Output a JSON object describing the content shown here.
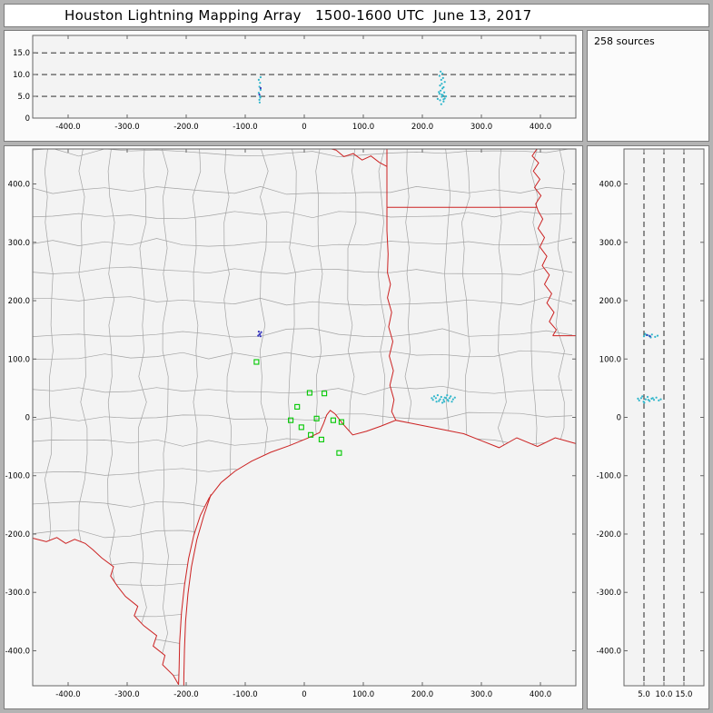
{
  "window": {
    "title": "Houston Lightning Mapping Array   1500-1600 UTC  June 13, 2017"
  },
  "status": {
    "sources_label": "258 sources"
  },
  "colors": {
    "frame": "#b3b3b3",
    "title_bg": "#ffffff",
    "panel_bg": "#fbfbfb",
    "plot_bg": "#f3f3f3",
    "axis": "#666666",
    "county": "#a3a3a3",
    "state_border": "#cc2222",
    "station": "#00c800",
    "source_cyan": "#2fb6cb",
    "source_navy": "#3434bb"
  },
  "chart_data": [
    {
      "id": "altitude_vs_ew",
      "type": "scatter",
      "description": "altitude (km) vs east-west distance (km)",
      "x_range": [
        -460,
        460
      ],
      "y_range": [
        0,
        19
      ],
      "x_ticks": [
        {
          "v": -400,
          "label": "-400.0"
        },
        {
          "v": -300,
          "label": "-300.0"
        },
        {
          "v": -200,
          "label": "-200.0"
        },
        {
          "v": -100,
          "label": "-100.0"
        },
        {
          "v": 0,
          "label": "0"
        },
        {
          "v": 100,
          "label": "100.0"
        },
        {
          "v": 200,
          "label": "200.0"
        },
        {
          "v": 300,
          "label": "300.0"
        },
        {
          "v": 400,
          "label": "400.0"
        }
      ],
      "y_ticks": [
        {
          "v": 15,
          "label": "15.0"
        },
        {
          "v": 10,
          "label": "10.0"
        },
        {
          "v": 5,
          "label": "5.0"
        },
        {
          "v": 0,
          "label": "0"
        }
      ],
      "dashed_y": [
        5,
        10,
        15
      ],
      "series": [
        {
          "name": "sources-west-cluster",
          "color": "source_cyan",
          "points": [
            [
              -76,
              4.2
            ],
            [
              -75,
              5.0
            ],
            [
              -77,
              5.8
            ],
            [
              -74,
              6.5
            ],
            [
              -76,
              7.2
            ],
            [
              -75,
              8.1
            ],
            [
              -77,
              8.8
            ],
            [
              -74,
              9.4
            ],
            [
              -75.5,
              3.6
            ],
            [
              -74.5,
              4.7
            ]
          ]
        },
        {
          "name": "sources-east-cluster",
          "color": "source_cyan",
          "points": [
            [
              232,
              3.2
            ],
            [
              236,
              3.8
            ],
            [
              230,
              4.1
            ],
            [
              238,
              4.5
            ],
            [
              233,
              4.9
            ],
            [
              235,
              5.2
            ],
            [
              229,
              5.6
            ],
            [
              237,
              5.9
            ],
            [
              231,
              6.3
            ],
            [
              234,
              6.8
            ],
            [
              236,
              7.1
            ],
            [
              230,
              7.5
            ],
            [
              233,
              7.9
            ],
            [
              238,
              8.3
            ],
            [
              232,
              8.8
            ],
            [
              235,
              9.2
            ],
            [
              229,
              9.7
            ],
            [
              234,
              10.2
            ],
            [
              231,
              10.7
            ],
            [
              236,
              4.3
            ],
            [
              233,
              5.4
            ],
            [
              228,
              6.0
            ],
            [
              240,
              5.0
            ],
            [
              226,
              4.4
            ]
          ]
        },
        {
          "name": "sources-navy",
          "color": "source_navy",
          "points": [
            [
              -76,
              5.4
            ],
            [
              -74,
              6.9
            ]
          ]
        }
      ]
    },
    {
      "id": "plan_view_map",
      "type": "scatter",
      "description": "plan view map, north-south (km) vs east-west (km), Houston at origin",
      "x_range": [
        -460,
        460
      ],
      "y_range": [
        -460,
        460
      ],
      "x_ticks": [
        {
          "v": -400,
          "label": "-400.0"
        },
        {
          "v": -300,
          "label": "-300.0"
        },
        {
          "v": -200,
          "label": "-200.0"
        },
        {
          "v": -100,
          "label": "-100.0"
        },
        {
          "v": 0,
          "label": "0"
        },
        {
          "v": 100,
          "label": "100.0"
        },
        {
          "v": 200,
          "label": "200.0"
        },
        {
          "v": 300,
          "label": "300.0"
        },
        {
          "v": 400,
          "label": "400.0"
        }
      ],
      "y_ticks": [
        {
          "v": 400,
          "label": "400.0"
        },
        {
          "v": 300,
          "label": "300.0"
        },
        {
          "v": 200,
          "label": "200.0"
        },
        {
          "v": 100,
          "label": "100.0"
        },
        {
          "v": 0,
          "label": "0"
        },
        {
          "v": -100,
          "label": "-100.0"
        },
        {
          "v": -200,
          "label": "-200.0"
        },
        {
          "v": -300,
          "label": "-300.0"
        },
        {
          "v": -400,
          "label": "-400.0"
        }
      ],
      "stations": [
        [
          -81,
          95
        ],
        [
          9,
          42
        ],
        [
          34,
          41
        ],
        [
          -12,
          18
        ],
        [
          -23,
          -5
        ],
        [
          -5,
          -17
        ],
        [
          21,
          -2
        ],
        [
          49,
          -5
        ],
        [
          63,
          -8
        ],
        [
          11,
          -30
        ],
        [
          29,
          -38
        ],
        [
          59,
          -61
        ]
      ],
      "series": [
        {
          "name": "sources-east-cluster",
          "color": "source_cyan",
          "points": [
            [
              218,
              30
            ],
            [
              223,
              33
            ],
            [
              228,
              28
            ],
            [
              232,
              35
            ],
            [
              236,
              30
            ],
            [
              240,
              33
            ],
            [
              244,
              28
            ],
            [
              248,
              36
            ],
            [
              252,
              31
            ],
            [
              226,
              38
            ],
            [
              234,
              25
            ],
            [
              242,
              38
            ],
            [
              220,
              36
            ],
            [
              230,
              31
            ],
            [
              238,
              34
            ],
            [
              246,
              33
            ],
            [
              250,
              27
            ],
            [
              224,
              27
            ],
            [
              255,
              34
            ],
            [
              216,
              33
            ],
            [
              243,
              30
            ],
            [
              237,
              27
            ]
          ]
        },
        {
          "name": "sources-north-cluster",
          "color": "source_navy",
          "points": [
            [
              -78,
              140
            ],
            [
              -75,
              143
            ],
            [
              -73,
              146
            ],
            [
              -77,
              147
            ],
            [
              -74,
              139
            ],
            [
              -76,
              142
            ]
          ]
        }
      ],
      "borders": {
        "gulf_coast": [
          [
            -213,
            -458
          ],
          [
            -212,
            -430
          ],
          [
            -211,
            -385
          ],
          [
            -208,
            -335
          ],
          [
            -203,
            -288
          ],
          [
            -196,
            -242
          ],
          [
            -187,
            -202
          ],
          [
            -176,
            -168
          ],
          [
            -161,
            -138
          ],
          [
            -141,
            -112
          ],
          [
            -117,
            -92
          ],
          [
            -89,
            -75
          ],
          [
            -57,
            -60
          ],
          [
            -24,
            -48
          ],
          [
            5,
            -36
          ],
          [
            26,
            -26
          ],
          [
            33,
            -10
          ],
          [
            38,
            4
          ],
          [
            44,
            12
          ],
          [
            52,
            6
          ],
          [
            66,
            -12
          ],
          [
            82,
            -30
          ],
          [
            105,
            -24
          ],
          [
            130,
            -15
          ],
          [
            155,
            -5
          ],
          [
            180,
            -10
          ],
          [
            210,
            -16
          ],
          [
            240,
            -22
          ],
          [
            270,
            -28
          ],
          [
            300,
            -40
          ],
          [
            330,
            -52
          ],
          [
            360,
            -35
          ],
          [
            395,
            -50
          ],
          [
            425,
            -35
          ],
          [
            460,
            -45
          ]
        ],
        "barrier_island": [
          [
            -158,
            -132
          ],
          [
            -170,
            -168
          ],
          [
            -182,
            -210
          ],
          [
            -191,
            -256
          ],
          [
            -197,
            -303
          ],
          [
            -201,
            -350
          ],
          [
            -203,
            -398
          ],
          [
            -204,
            -446
          ],
          [
            -204,
            -460
          ]
        ],
        "rio_grande": [
          [
            -213,
            -458
          ],
          [
            -222,
            -442
          ],
          [
            -240,
            -424
          ],
          [
            -236,
            -408
          ],
          [
            -256,
            -392
          ],
          [
            -250,
            -374
          ],
          [
            -272,
            -357
          ],
          [
            -288,
            -340
          ],
          [
            -282,
            -324
          ],
          [
            -303,
            -307
          ],
          [
            -316,
            -290
          ],
          [
            -328,
            -272
          ],
          [
            -323,
            -256
          ],
          [
            -343,
            -241
          ],
          [
            -358,
            -227
          ],
          [
            -371,
            -216
          ],
          [
            -389,
            -209
          ],
          [
            -404,
            -216
          ],
          [
            -419,
            -206
          ],
          [
            -437,
            -213
          ],
          [
            -460,
            -207
          ]
        ],
        "texas_louisiana": [
          [
            155,
            -5
          ],
          [
            148,
            10
          ],
          [
            152,
            30
          ],
          [
            145,
            55
          ],
          [
            151,
            80
          ],
          [
            144,
            105
          ],
          [
            150,
            130
          ],
          [
            143,
            155
          ],
          [
            148,
            180
          ],
          [
            141,
            205
          ],
          [
            146,
            228
          ],
          [
            141,
            248
          ],
          [
            142,
            280
          ],
          [
            140,
            320
          ],
          [
            140,
            360
          ]
        ],
        "texas_arkansas": [
          [
            140,
            360
          ],
          [
            140,
            460
          ]
        ],
        "arkansas_louisiana": [
          [
            140,
            360
          ],
          [
            394,
            360
          ]
        ],
        "red_river": [
          [
            140,
            430
          ],
          [
            127,
            437
          ],
          [
            113,
            448
          ],
          [
            98,
            441
          ],
          [
            83,
            452
          ],
          [
            67,
            447
          ],
          [
            54,
            458
          ],
          [
            46,
            460
          ]
        ],
        "mississippi_river": [
          [
            394,
            460
          ],
          [
            386,
            448
          ],
          [
            397,
            436
          ],
          [
            388,
            422
          ],
          [
            399,
            408
          ],
          [
            390,
            394
          ],
          [
            401,
            380
          ],
          [
            392,
            366
          ],
          [
            396,
            354
          ],
          [
            404,
            340
          ],
          [
            396,
            324
          ],
          [
            407,
            308
          ],
          [
            399,
            292
          ],
          [
            411,
            276
          ],
          [
            403,
            260
          ],
          [
            415,
            244
          ],
          [
            407,
            228
          ],
          [
            419,
            212
          ],
          [
            411,
            196
          ],
          [
            423,
            180
          ],
          [
            415,
            164
          ],
          [
            427,
            150
          ],
          [
            421,
            140
          ]
        ],
        "louisiana_mississippi": [
          [
            421,
            140
          ],
          [
            460,
            140
          ]
        ]
      }
    },
    {
      "id": "altitude_vs_ns",
      "type": "scatter",
      "description": "north-south distance (km) vs altitude (km)",
      "x_range": [
        0,
        20
      ],
      "y_range": [
        -460,
        460
      ],
      "x_ticks": [
        {
          "v": 5,
          "label": "5.0"
        },
        {
          "v": 10,
          "label": "10.0"
        },
        {
          "v": 15,
          "label": "15.0"
        }
      ],
      "y_ticks": [
        {
          "v": 400,
          "label": "400.0"
        },
        {
          "v": 300,
          "label": "300.0"
        },
        {
          "v": 200,
          "label": "200.0"
        },
        {
          "v": 100,
          "label": "100.0"
        },
        {
          "v": 0,
          "label": "0"
        },
        {
          "v": -100,
          "label": "-100.0"
        },
        {
          "v": -200,
          "label": "-200.0"
        },
        {
          "v": -300,
          "label": "-300.0"
        },
        {
          "v": -400,
          "label": "-400.0"
        }
      ],
      "dashed_x": [
        5,
        10,
        15
      ],
      "series": [
        {
          "name": "sources-north-cluster",
          "color": "source_cyan",
          "points": [
            [
              5.0,
              139
            ],
            [
              5.6,
              141
            ],
            [
              6.3,
              140
            ],
            [
              7.0,
              142
            ],
            [
              7.8,
              138
            ],
            [
              8.4,
              140
            ],
            [
              5.3,
              143
            ],
            [
              6.7,
              137
            ]
          ]
        },
        {
          "name": "sources-central-cluster",
          "color": "source_cyan",
          "points": [
            [
              3.8,
              29
            ],
            [
              4.3,
              33
            ],
            [
              4.9,
              27
            ],
            [
              5.4,
              31
            ],
            [
              5.9,
              35
            ],
            [
              6.4,
              28
            ],
            [
              6.9,
              32
            ],
            [
              7.5,
              30
            ],
            [
              8.1,
              34
            ],
            [
              8.7,
              29
            ],
            [
              4.6,
              36
            ],
            [
              5.1,
              25
            ],
            [
              6.1,
              30
            ],
            [
              7.2,
              33
            ],
            [
              9.2,
              31
            ],
            [
              3.5,
              32
            ]
          ]
        },
        {
          "name": "sources-navy",
          "color": "source_navy",
          "points": [
            [
              5.8,
              141
            ],
            [
              6.5,
              139
            ]
          ]
        }
      ]
    }
  ]
}
